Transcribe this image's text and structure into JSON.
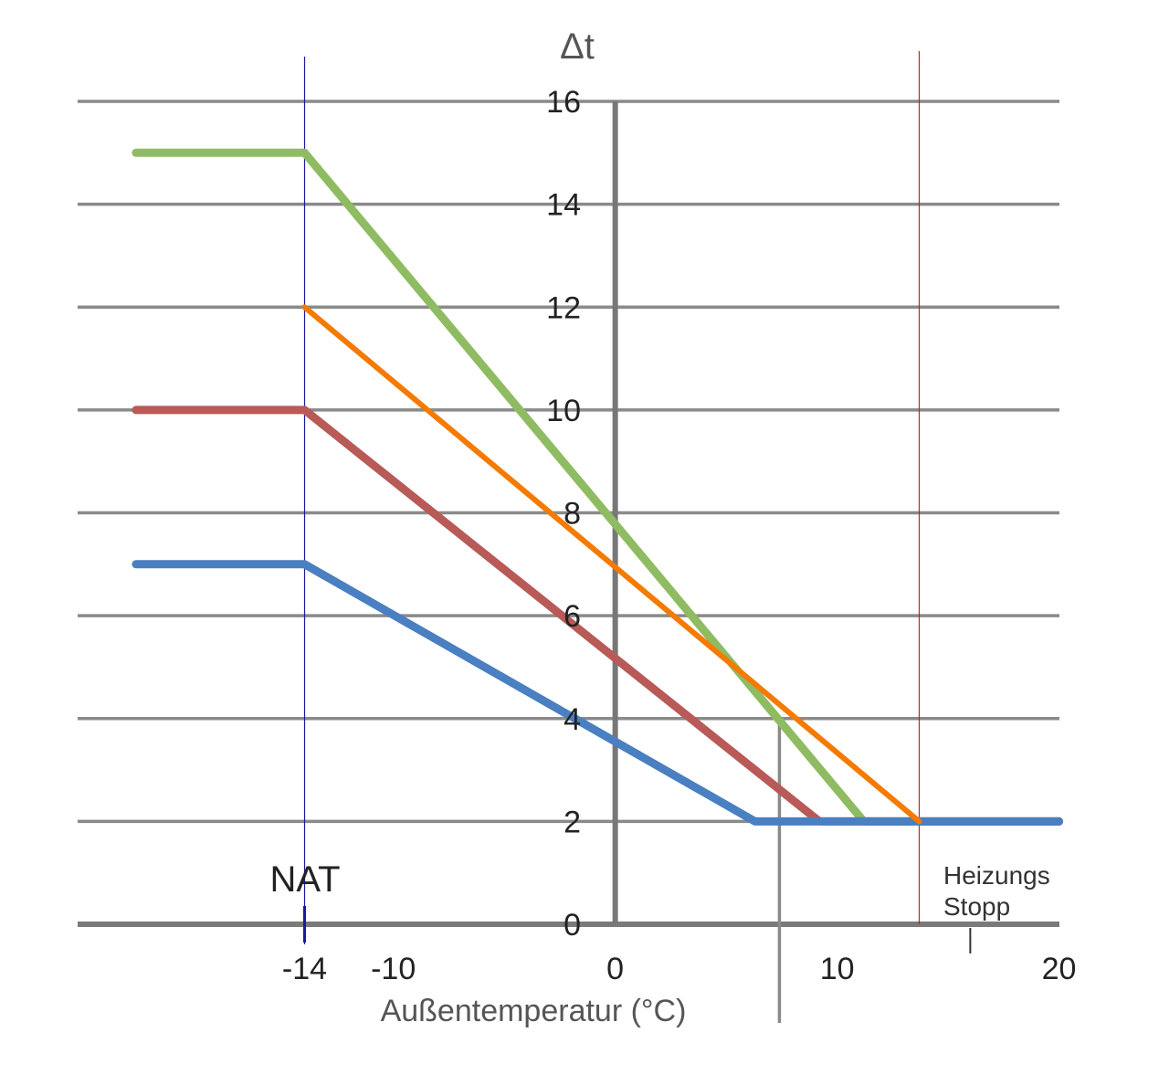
{
  "chart_data": {
    "type": "line",
    "title": "",
    "xlabel": "Außentemperatur (°C)",
    "ylabel": "Δt",
    "xlim": [
      -20,
      20
    ],
    "ylim": [
      0,
      16
    ],
    "grid": true,
    "y_ticks": [
      "0",
      "2",
      "4",
      "6",
      "8",
      "10",
      "12",
      "14",
      "16"
    ],
    "y_tick_values": [
      0,
      2,
      4,
      6,
      8,
      10,
      12,
      14,
      16
    ],
    "x_ticks": [
      "-14",
      "-10",
      "0",
      "10",
      "20"
    ],
    "x_tick_values": [
      -14,
      -10,
      0,
      10,
      20
    ],
    "series": [
      {
        "color": "#8fbc62",
        "points": [
          [
            -21.6,
            15
          ],
          [
            -14,
            15
          ],
          [
            11.2,
            2
          ],
          [
            20,
            2
          ]
        ]
      },
      {
        "color": "#b85a58",
        "points": [
          [
            -21.6,
            10
          ],
          [
            -14,
            10
          ],
          [
            9.2,
            2
          ],
          [
            20,
            2
          ]
        ]
      },
      {
        "color": "#4a7fc1",
        "points": [
          [
            -21.6,
            7
          ],
          [
            -14,
            7
          ],
          [
            6.3,
            2
          ],
          [
            20,
            2
          ]
        ]
      },
      {
        "color": "#f47a00",
        "points": [
          [
            -14,
            12
          ],
          [
            13.7,
            2
          ]
        ]
      }
    ],
    "annotations": {
      "nat_label": "NAT",
      "nat_x": -14,
      "nat_line_color": "#1a1aa0",
      "stop_line_x": 13.7,
      "stop_line_color": "#c0202a",
      "stop_tick_x": 16,
      "stop_label_line1": "Heizungs",
      "stop_label_line2": "Stopp",
      "marker_line_x": 7.4,
      "marker_line_y_top": 4
    }
  }
}
